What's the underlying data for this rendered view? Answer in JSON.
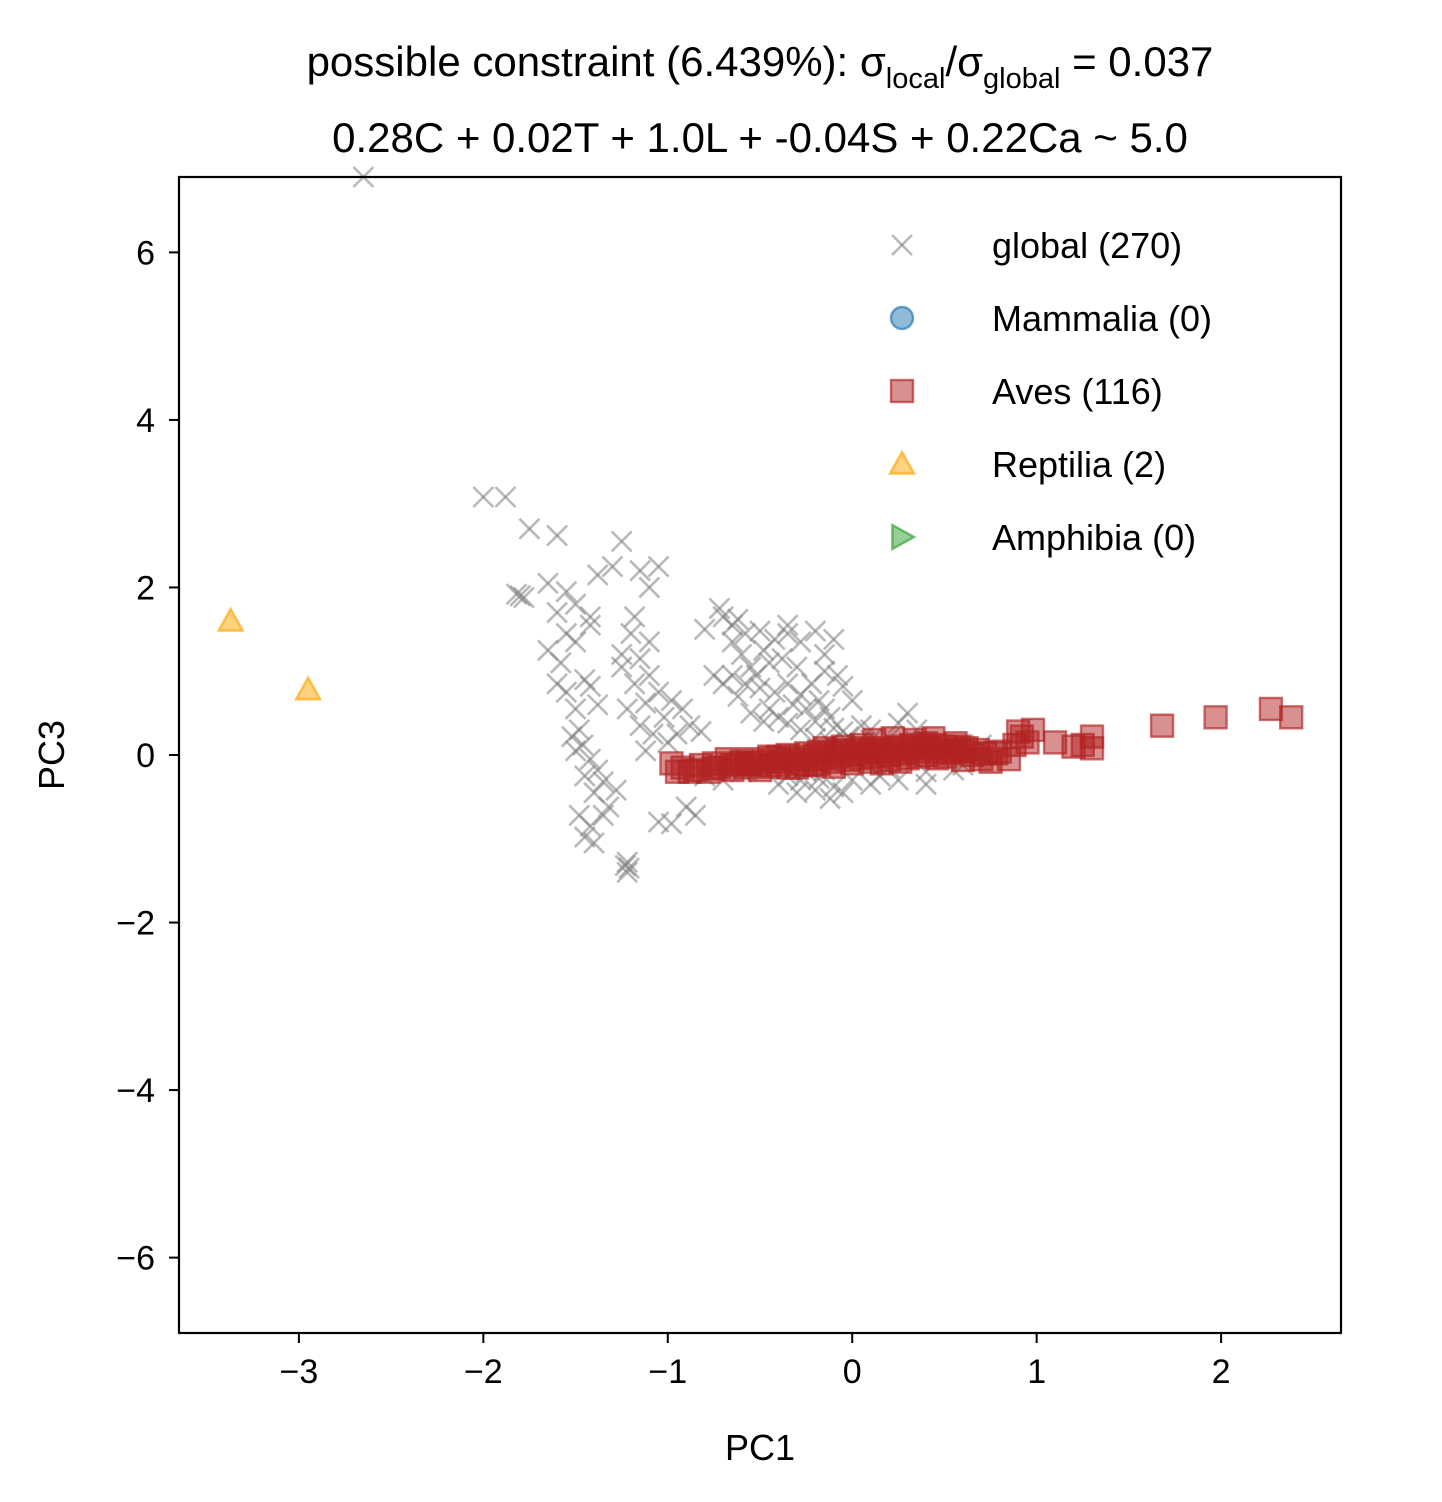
{
  "chart_data": {
    "type": "scatter",
    "title": {
      "prefix": "possible constraint (6.439%): σ",
      "sub1": "local",
      "mid": "/σ",
      "sub2": "global",
      "suffix": " = 0.037"
    },
    "subtitle": "0.28C + 0.02T + 1.0L + -0.04S + 0.22Ca ~ 5.0",
    "xlabel": "PC1",
    "ylabel": "PC3",
    "xlim": [
      -3.65,
      2.65
    ],
    "ylim": [
      -6.9,
      6.9
    ],
    "xticks": [
      -3,
      -2,
      -1,
      0,
      1,
      2
    ],
    "xtick_labels": [
      "−3",
      "−2",
      "−1",
      "0",
      "1",
      "2"
    ],
    "yticks": [
      -6,
      -4,
      -2,
      0,
      2,
      4,
      6
    ],
    "ytick_labels": [
      "−6",
      "−4",
      "−2",
      "0",
      "2",
      "4",
      "6"
    ],
    "grid": false,
    "legend_position": "top-right",
    "series": [
      {
        "name": "global (270)",
        "marker": "x",
        "color": "#808080",
        "points": [
          [
            -2.65,
            6.9
          ],
          [
            -2.0,
            3.08
          ],
          [
            -1.88,
            3.08
          ],
          [
            -1.75,
            2.7
          ],
          [
            -1.6,
            2.62
          ],
          [
            -1.25,
            2.55
          ],
          [
            -1.3,
            2.25
          ],
          [
            -1.15,
            2.2
          ],
          [
            -1.05,
            2.25
          ],
          [
            -1.1,
            2.0
          ],
          [
            -1.38,
            2.15
          ],
          [
            -1.65,
            2.05
          ],
          [
            -1.55,
            1.95
          ],
          [
            -1.5,
            1.8
          ],
          [
            -1.42,
            1.65
          ],
          [
            -1.6,
            1.7
          ],
          [
            -1.8,
            1.9
          ],
          [
            -1.78,
            1.88
          ],
          [
            -1.82,
            1.92
          ],
          [
            -1.55,
            1.45
          ],
          [
            -1.5,
            1.35
          ],
          [
            -1.42,
            1.55
          ],
          [
            -1.65,
            1.25
          ],
          [
            -1.58,
            1.1
          ],
          [
            -1.45,
            0.9
          ],
          [
            -1.6,
            0.85
          ],
          [
            -1.55,
            0.75
          ],
          [
            -1.42,
            0.82
          ],
          [
            -1.38,
            0.6
          ],
          [
            -1.5,
            0.55
          ],
          [
            -1.48,
            0.3
          ],
          [
            -1.52,
            0.22
          ],
          [
            -1.46,
            0.12
          ],
          [
            -1.5,
            0.05
          ],
          [
            -1.42,
            -0.05
          ],
          [
            -1.38,
            -0.18
          ],
          [
            -1.45,
            -0.25
          ],
          [
            -1.35,
            -0.32
          ],
          [
            -1.4,
            -0.45
          ],
          [
            -1.32,
            -0.62
          ],
          [
            -1.48,
            -0.72
          ],
          [
            -1.42,
            -0.85
          ],
          [
            -1.45,
            -0.98
          ],
          [
            -1.4,
            -1.05
          ],
          [
            -1.22,
            -1.28
          ],
          [
            -1.23,
            -1.32
          ],
          [
            -1.21,
            -1.35
          ],
          [
            -1.22,
            -1.4
          ],
          [
            -1.28,
            -0.42
          ],
          [
            -1.35,
            -0.72
          ],
          [
            -1.2,
            1.45
          ],
          [
            -1.1,
            1.35
          ],
          [
            -1.15,
            1.15
          ],
          [
            -1.25,
            1.05
          ],
          [
            -1.1,
            0.95
          ],
          [
            -1.18,
            0.85
          ],
          [
            -1.05,
            0.75
          ],
          [
            -1.12,
            0.62
          ],
          [
            -1.22,
            0.55
          ],
          [
            -1.02,
            0.45
          ],
          [
            -1.15,
            0.35
          ],
          [
            -1.08,
            0.25
          ],
          [
            -1.0,
            0.15
          ],
          [
            -1.12,
            0.05
          ],
          [
            -0.98,
            0.65
          ],
          [
            -0.92,
            0.55
          ],
          [
            -0.88,
            0.35
          ],
          [
            -0.95,
            0.25
          ],
          [
            -0.82,
            0.28
          ],
          [
            -1.18,
            1.65
          ],
          [
            -1.25,
            1.2
          ],
          [
            -0.85,
            -0.72
          ],
          [
            -0.9,
            -0.62
          ],
          [
            -0.98,
            -0.82
          ],
          [
            -1.05,
            -0.8
          ],
          [
            -0.7,
            1.65
          ],
          [
            -0.72,
            1.75
          ],
          [
            -0.65,
            1.55
          ],
          [
            -0.58,
            1.45
          ],
          [
            -0.5,
            1.48
          ],
          [
            -0.42,
            1.38
          ],
          [
            -0.35,
            1.45
          ],
          [
            -0.65,
            1.35
          ],
          [
            -0.6,
            1.2
          ],
          [
            -0.55,
            1.05
          ],
          [
            -0.48,
            1.25
          ],
          [
            -0.52,
            0.95
          ],
          [
            -0.45,
            1.1
          ],
          [
            -0.38,
            1.15
          ],
          [
            -0.3,
            1.05
          ],
          [
            -0.65,
            0.95
          ],
          [
            -0.58,
            0.85
          ],
          [
            -0.5,
            0.8
          ],
          [
            -0.42,
            0.75
          ],
          [
            -0.35,
            0.85
          ],
          [
            -0.28,
            0.72
          ],
          [
            -0.22,
            0.85
          ],
          [
            -0.18,
            0.65
          ],
          [
            -0.32,
            0.6
          ],
          [
            -0.25,
            0.55
          ],
          [
            -0.15,
            0.55
          ],
          [
            -0.12,
            0.45
          ],
          [
            -0.2,
            0.4
          ],
          [
            -0.1,
            0.32
          ],
          [
            -0.05,
            0.28
          ],
          [
            -0.28,
            1.35
          ],
          [
            -0.15,
            1.2
          ],
          [
            -0.08,
            0.95
          ],
          [
            -0.15,
            1.0
          ],
          [
            -0.05,
            0.82
          ],
          [
            0.0,
            0.65
          ],
          [
            -0.45,
            0.55
          ],
          [
            -0.4,
            0.45
          ],
          [
            -0.35,
            0.38
          ],
          [
            -0.28,
            0.3
          ],
          [
            -0.2,
            0.2
          ],
          [
            -0.12,
            0.15
          ],
          [
            -0.05,
            0.1
          ],
          [
            0.05,
            0.05
          ],
          [
            0.1,
            0.18
          ],
          [
            -0.7,
            0.85
          ],
          [
            -0.75,
            0.95
          ],
          [
            -0.62,
            0.7
          ],
          [
            -0.55,
            0.5
          ],
          [
            -0.48,
            0.4
          ],
          [
            -0.8,
            1.5
          ],
          [
            -0.62,
            1.62
          ],
          [
            -0.35,
            1.55
          ],
          [
            -0.2,
            1.48
          ],
          [
            -0.1,
            1.38
          ],
          [
            0.15,
            -0.25
          ],
          [
            0.1,
            -0.35
          ],
          [
            0.0,
            -0.3
          ],
          [
            -0.1,
            -0.38
          ],
          [
            -0.2,
            -0.42
          ],
          [
            -0.28,
            -0.3
          ],
          [
            -0.25,
            -0.2
          ],
          [
            -0.15,
            -0.18
          ],
          [
            -0.05,
            -0.45
          ],
          [
            0.2,
            -0.15
          ],
          [
            0.3,
            0.5
          ],
          [
            0.35,
            0.3
          ],
          [
            0.2,
            0.2
          ],
          [
            0.15,
            0.05
          ],
          [
            0.4,
            -0.2
          ],
          [
            0.55,
            -0.18
          ],
          [
            0.6,
            -0.12
          ],
          [
            0.4,
            -0.35
          ],
          [
            0.7,
            0.12
          ],
          [
            0.25,
            0.38
          ],
          [
            -0.6,
            -0.2
          ],
          [
            -0.7,
            -0.3
          ],
          [
            -0.8,
            -0.25
          ],
          [
            -0.5,
            -0.15
          ],
          [
            -0.45,
            -0.1
          ],
          [
            0.1,
            0.3
          ],
          [
            0.05,
            0.35
          ],
          [
            -0.02,
            0.22
          ],
          [
            0.08,
            -0.08
          ],
          [
            -0.18,
            -0.28
          ],
          [
            -0.35,
            -0.25
          ],
          [
            -0.4,
            -0.35
          ],
          [
            -0.3,
            -0.45
          ],
          [
            -0.12,
            -0.52
          ],
          [
            0.25,
            -0.3
          ]
        ]
      },
      {
        "name": "Mammalia (0)",
        "marker": "o",
        "color": "#1f77b4",
        "points": []
      },
      {
        "name": "Aves (116)",
        "marker": "s",
        "color": "#b22222",
        "points": [
          [
            -0.98,
            -0.1
          ],
          [
            -0.92,
            -0.15
          ],
          [
            -0.85,
            -0.18
          ],
          [
            -0.82,
            -0.12
          ],
          [
            -0.78,
            -0.2
          ],
          [
            -0.75,
            -0.1
          ],
          [
            -0.72,
            -0.15
          ],
          [
            -0.68,
            -0.05
          ],
          [
            -0.65,
            -0.18
          ],
          [
            -0.62,
            -0.1
          ],
          [
            -0.58,
            -0.15
          ],
          [
            -0.55,
            -0.05
          ],
          [
            -0.52,
            -0.12
          ],
          [
            -0.5,
            -0.18
          ],
          [
            -0.48,
            -0.08
          ],
          [
            -0.45,
            -0.14
          ],
          [
            -0.42,
            -0.04
          ],
          [
            -0.4,
            -0.12
          ],
          [
            -0.38,
            -0.08
          ],
          [
            -0.35,
            -0.15
          ],
          [
            -0.32,
            -0.05
          ],
          [
            -0.3,
            -0.1
          ],
          [
            -0.28,
            -0.02
          ],
          [
            -0.25,
            -0.12
          ],
          [
            -0.22,
            -0.06
          ],
          [
            -0.2,
            0.0
          ],
          [
            -0.18,
            -0.1
          ],
          [
            -0.15,
            -0.04
          ],
          [
            -0.12,
            0.02
          ],
          [
            -0.1,
            -0.08
          ],
          [
            -0.08,
            -0.02
          ],
          [
            -0.05,
            0.04
          ],
          [
            -0.02,
            -0.06
          ],
          [
            0.0,
            0.0
          ],
          [
            0.02,
            0.05
          ],
          [
            0.05,
            -0.04
          ],
          [
            0.08,
            0.02
          ],
          [
            0.1,
            0.06
          ],
          [
            0.12,
            -0.02
          ],
          [
            0.15,
            0.04
          ],
          [
            0.18,
            0.08
          ],
          [
            0.2,
            0.0
          ],
          [
            0.22,
            0.06
          ],
          [
            0.25,
            0.1
          ],
          [
            0.28,
            0.02
          ],
          [
            0.3,
            0.08
          ],
          [
            0.32,
            0.12
          ],
          [
            0.35,
            0.04
          ],
          [
            0.38,
            0.1
          ],
          [
            0.4,
            0.0
          ],
          [
            0.42,
            0.08
          ],
          [
            0.45,
            0.12
          ],
          [
            0.48,
            0.04
          ],
          [
            0.5,
            0.1
          ],
          [
            0.52,
            0.02
          ],
          [
            0.55,
            0.06
          ],
          [
            0.58,
            0.1
          ],
          [
            0.6,
            0.04
          ],
          [
            0.62,
            0.08
          ],
          [
            0.65,
            0.0
          ],
          [
            0.7,
            -0.05
          ],
          [
            0.75,
            -0.08
          ],
          [
            0.78,
            0.02
          ],
          [
            0.85,
            -0.05
          ],
          [
            0.88,
            0.12
          ],
          [
            0.9,
            0.28
          ],
          [
            0.92,
            0.22
          ],
          [
            0.95,
            0.15
          ],
          [
            0.98,
            0.3
          ],
          [
            1.1,
            0.15
          ],
          [
            1.2,
            0.1
          ],
          [
            1.25,
            0.12
          ],
          [
            1.3,
            0.22
          ],
          [
            1.3,
            0.08
          ],
          [
            1.68,
            0.35
          ],
          [
            1.97,
            0.45
          ],
          [
            2.27,
            0.55
          ],
          [
            2.38,
            0.45
          ],
          [
            -0.3,
            -0.15
          ],
          [
            -0.2,
            -0.12
          ],
          [
            -0.1,
            -0.14
          ],
          [
            0.0,
            -0.1
          ],
          [
            0.1,
            -0.08
          ],
          [
            0.2,
            -0.06
          ],
          [
            0.3,
            -0.04
          ],
          [
            0.4,
            0.14
          ],
          [
            0.5,
            -0.02
          ],
          [
            0.6,
            -0.06
          ],
          [
            -0.6,
            -0.08
          ],
          [
            -0.4,
            -0.02
          ],
          [
            0.22,
            0.2
          ],
          [
            0.12,
            0.18
          ],
          [
            0.05,
            0.12
          ],
          [
            -0.05,
            0.1
          ],
          [
            -0.15,
            0.08
          ],
          [
            0.34,
            0.18
          ],
          [
            0.44,
            0.2
          ],
          [
            0.26,
            -0.08
          ],
          [
            0.16,
            -0.1
          ],
          [
            -0.25,
            0.02
          ],
          [
            -0.35,
            0.0
          ],
          [
            -0.45,
            -0.02
          ],
          [
            -0.55,
            -0.1
          ],
          [
            -0.65,
            -0.12
          ],
          [
            -0.75,
            -0.16
          ],
          [
            -0.88,
            -0.2
          ],
          [
            -0.95,
            -0.2
          ],
          [
            0.68,
            0.06
          ],
          [
            0.72,
            0.02
          ],
          [
            0.8,
            0.04
          ],
          [
            0.56,
            0.14
          ],
          [
            0.46,
            -0.04
          ],
          [
            0.36,
            -0.02
          ],
          [
            0.06,
            0.08
          ],
          [
            -0.08,
            0.06
          ],
          [
            -0.18,
            0.04
          ]
        ]
      },
      {
        "name": "Reptilia (2)",
        "marker": "^",
        "color": "#ffa500",
        "points": [
          [
            -3.37,
            1.6
          ],
          [
            -2.95,
            0.78
          ]
        ]
      },
      {
        "name": "Amphibia (0)",
        "marker": ">",
        "color": "#2ca02c",
        "points": []
      }
    ]
  }
}
